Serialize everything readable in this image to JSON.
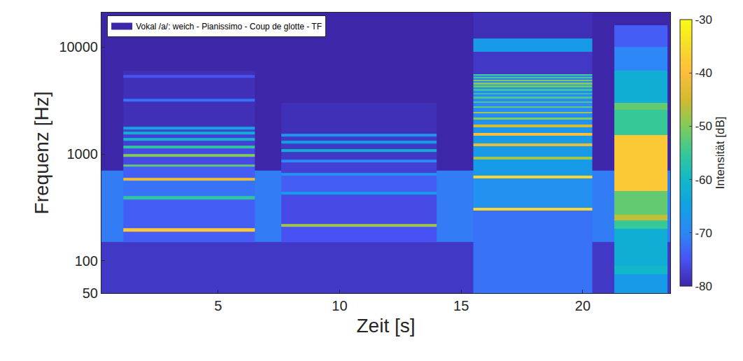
{
  "chart_data": {
    "type": "heatmap",
    "xlabel": "Zeit [s]",
    "ylabel": "Frequenz [Hz]",
    "log": "y",
    "grid": false,
    "xlim": [
      0.2,
      23.6
    ],
    "ylim": [
      50,
      21000
    ],
    "xticks": [
      5,
      10,
      15,
      20
    ],
    "yticks": [
      50,
      100,
      1000,
      10000
    ],
    "legend": "upper left",
    "series": [
      {
        "name": "Vokal /a/: weich - Pianissimo - Coup de glotte - TF",
        "color": "#3e26a8"
      }
    ],
    "colorbar": {
      "label": "Intensität [dB]",
      "range": [
        -80,
        -30
      ],
      "ticks": [
        -30,
        -40,
        -50,
        -60,
        -70,
        -80
      ]
    },
    "cells": [
      {
        "x": [
          0.2,
          23.6
        ],
        "y": [
          50,
          150,
          700
        ],
        "values": [
          -78,
          -71
        ]
      },
      {
        "x": [
          1.1,
          6.5
        ],
        "y": [
          150,
          189,
          201,
          378,
          402,
          567,
          603,
          757,
          803,
          946,
          1004,
          1135,
          1205,
          1324,
          1406,
          1513,
          1607,
          1702,
          1808,
          3100,
          3300,
          5150,
          5450,
          6000
        ],
        "values": [
          -74,
          -38,
          -74,
          -56,
          -72,
          -42,
          -74,
          -52,
          -76,
          -50,
          -76,
          -56,
          -77,
          -60,
          -77,
          -62,
          -77,
          -64,
          -79,
          -72,
          -79,
          -75,
          -79
        ]
      },
      {
        "x": [
          7.6,
          14.0
        ],
        "y": [
          150,
          208,
          222,
          417,
          443,
          626,
          664,
          834,
          886,
          1043,
          1107,
          1251,
          1329,
          1460,
          1550,
          3000
        ],
        "values": [
          -75,
          -48,
          -76,
          -66,
          -74,
          -68,
          -77,
          -70,
          -78,
          -62,
          -78,
          -65,
          -78,
          -67,
          -79
        ]
      },
      {
        "x": [
          15.5,
          20.4
        ],
        "y": [
          50,
          296,
          314,
          592,
          628,
          888,
          942,
          1183,
          1257,
          1479,
          1571,
          1775,
          1885,
          2092,
          2178,
          2391,
          2489,
          2690,
          2800,
          2989,
          3111,
          3288,
          3422,
          3587,
          3733,
          3886,
          4044,
          4185,
          4355,
          4484,
          4666,
          4782,
          4978,
          5081,
          5289,
          5380,
          5600,
          9000,
          12000,
          21000
        ],
        "values": [
          -72,
          -36,
          -68,
          -36,
          -66,
          -48,
          -66,
          -42,
          -66,
          -40,
          -67,
          -45,
          -68,
          -50,
          -69,
          -48,
          -69,
          -52,
          -70,
          -54,
          -70,
          -54,
          -70,
          -56,
          -70,
          -55,
          -70,
          -52,
          -70,
          -50,
          -70,
          -50,
          -71,
          -54,
          -71,
          -54,
          -78,
          -66,
          -79
        ]
      },
      {
        "x": [
          21.3,
          23.5
        ],
        "y": [
          50,
          75,
          90,
          200,
          240,
          270,
          450,
          1500,
          2600,
          3000,
          6000,
          10000,
          16000
        ],
        "values": [
          -66,
          -60,
          -62,
          -55,
          -46,
          -52,
          -38,
          -55,
          -52,
          -62,
          -70,
          -74
        ]
      }
    ]
  }
}
